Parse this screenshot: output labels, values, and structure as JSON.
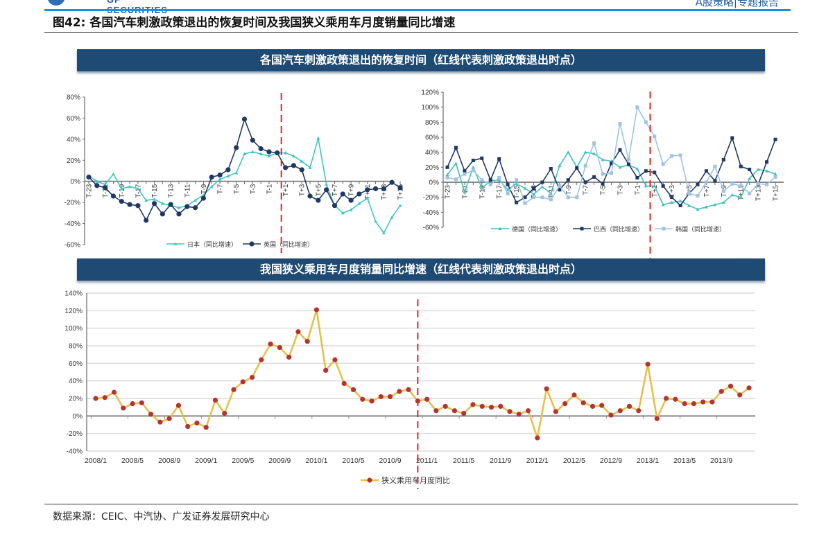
{
  "header": {
    "logo_text": "GF SECURITIES",
    "report_tag": "A股策略|专题报告",
    "caption": "图42:  各国汽车刺激政策退出的恢复时间及我国狭义乘用车月度销量同比增速"
  },
  "banners": {
    "top": "各国汽车刺激政策退出的恢复时间（红线代表刺激政策退出时点）",
    "bottom": "我国狭义乘用车月度销量同比增速（红线代表刺激政策退出时点）"
  },
  "footer": {
    "source": "数据来源：CEIC、中汽协、广发证券发展研究中心"
  },
  "colors": {
    "policy_exit_line": "#e8201c",
    "banner": "#1f4a73"
  },
  "chart_data": [
    {
      "type": "line",
      "x": [
        -23,
        -22,
        -21,
        -20,
        -19,
        -18,
        -17,
        -16,
        -15,
        -14,
        -13,
        -12,
        -11,
        -10,
        -9,
        -8,
        -7,
        -6,
        -5,
        -4,
        -3,
        -2,
        -1,
        0,
        1,
        2,
        3,
        4,
        5,
        6,
        7,
        8,
        9,
        10,
        11,
        12,
        13,
        14,
        15
      ],
      "xtick_labels": [
        "T-23",
        "T-21",
        "T-19",
        "T-17",
        "T-15",
        "T-13",
        "T-11",
        "T-9",
        "T-7",
        "T-5",
        "T-3",
        "T-1",
        "T+1",
        "T+3",
        "T+5",
        "T+7",
        "T+9",
        "T+11",
        "T+13",
        "T+15"
      ],
      "xtick_values": [
        -23,
        -21,
        -19,
        -17,
        -15,
        -13,
        -11,
        -9,
        -7,
        -5,
        -3,
        -1,
        1,
        3,
        5,
        7,
        9,
        11,
        13,
        15
      ],
      "ylim": [
        -60,
        80
      ],
      "yticks": [
        "80%",
        "60%",
        "40%",
        "20%",
        "0%",
        "-20%",
        "-40%",
        "-60%"
      ],
      "ytick_values": [
        80,
        60,
        40,
        20,
        0,
        -20,
        -40,
        -60
      ],
      "legend": "bottom",
      "policy_exit_x": 0,
      "series": [
        {
          "name": "日本（同比增速）",
          "color": "#3cc6c6",
          "marker": "triangle",
          "values": [
            5,
            0,
            -3,
            7,
            -7,
            -5,
            -7,
            -18,
            -17,
            -21,
            -23,
            -25,
            -23,
            -18,
            -13,
            -5,
            2,
            5,
            8,
            26,
            28,
            26,
            24,
            27,
            27,
            24,
            19,
            13,
            41,
            -3,
            -23,
            -30,
            -27,
            -21,
            -16,
            -38,
            -49,
            -34,
            -23
          ]
        },
        {
          "name": "英国（同比增速）",
          "color": "#1f3864",
          "marker": "circle",
          "values": [
            4,
            -4,
            -6,
            -14,
            -19,
            -22,
            -23,
            -37,
            -21,
            -31,
            -22,
            -31,
            -24,
            -25,
            -16,
            4,
            6,
            11,
            32,
            59,
            39,
            31,
            28,
            27,
            13,
            15,
            11,
            -14,
            -18,
            -8,
            -23,
            -12,
            -18,
            -12,
            -8,
            -7,
            -7,
            -1,
            -6
          ]
        }
      ]
    },
    {
      "type": "line",
      "x": [
        -23,
        -22,
        -21,
        -20,
        -19,
        -18,
        -17,
        -16,
        -15,
        -14,
        -13,
        -12,
        -11,
        -10,
        -9,
        -8,
        -7,
        -6,
        -5,
        -4,
        -3,
        -2,
        -1,
        0,
        1,
        2,
        3,
        4,
        5,
        6,
        7,
        8,
        9,
        10,
        11,
        12,
        13,
        14,
        15
      ],
      "xtick_labels": [
        "T-23",
        "T-21",
        "T-19",
        "T-17",
        "T-15",
        "T-13",
        "T-11",
        "T-9",
        "T-7",
        "T-5",
        "T-3",
        "T-1",
        "T+1",
        "T+3",
        "T+5",
        "T+7",
        "T+9",
        "T+11",
        "T+13",
        "T+15"
      ],
      "xtick_values": [
        -23,
        -21,
        -19,
        -17,
        -15,
        -13,
        -11,
        -9,
        -7,
        -5,
        -3,
        -1,
        1,
        3,
        5,
        7,
        9,
        11,
        13,
        15
      ],
      "ylim": [
        -60,
        120
      ],
      "yticks": [
        "120%",
        "100%",
        "80%",
        "60%",
        "40%",
        "20%",
        "0%",
        "-20%",
        "-40%",
        "-60%"
      ],
      "ytick_values": [
        120,
        100,
        80,
        60,
        40,
        20,
        0,
        -20,
        -40,
        -60
      ],
      "legend": "bottom",
      "policy_exit_x": 0,
      "series": [
        {
          "name": "德国（同比增速）",
          "color": "#40c0c0",
          "marker": "triangle",
          "values": [
            10,
            25,
            -13,
            20,
            -8,
            2,
            3,
            -10,
            -2,
            -8,
            -16,
            -6,
            -15,
            22,
            40,
            20,
            40,
            38,
            30,
            28,
            20,
            23,
            18,
            -5,
            -5,
            -30,
            -27,
            -25,
            -31,
            -36,
            -33,
            -30,
            -27,
            -17,
            -20,
            5,
            17,
            15,
            11
          ]
        },
        {
          "name": "巴西（同比增速）",
          "color": "#1f3864",
          "marker": "square",
          "values": [
            20,
            46,
            15,
            29,
            32,
            3,
            31,
            -3,
            -27,
            -20,
            -8,
            0,
            18,
            -10,
            3,
            19,
            0,
            7,
            -2,
            25,
            43,
            24,
            6,
            15,
            13,
            -5,
            -20,
            -31,
            -15,
            -3,
            15,
            2,
            30,
            59,
            21,
            17,
            -3,
            27,
            57
          ]
        },
        {
          "name": "韩国（同比增速）",
          "color": "#9dc3e6",
          "marker": "square",
          "values": [
            6,
            4,
            11,
            16,
            3,
            -3,
            6,
            -15,
            3,
            -28,
            -20,
            -20,
            -23,
            -5,
            -20,
            -20,
            22,
            52,
            11,
            12,
            78,
            30,
            100,
            80,
            61,
            24,
            35,
            36,
            -15,
            -18,
            0,
            21,
            -12,
            -2,
            -5,
            -15,
            -2,
            -3,
            7
          ]
        }
      ]
    },
    {
      "type": "line",
      "categories": [
        "2008/1",
        "2008/2",
        "2008/3",
        "2008/4",
        "2008/5",
        "2008/6",
        "2008/7",
        "2008/8",
        "2008/9",
        "2008/10",
        "2008/11",
        "2008/12",
        "2009/1",
        "2009/2",
        "2009/3",
        "2009/4",
        "2009/5",
        "2009/6",
        "2009/7",
        "2009/8",
        "2009/9",
        "2009/10",
        "2009/11",
        "2009/12",
        "2010/1",
        "2010/2",
        "2010/3",
        "2010/4",
        "2010/5",
        "2010/6",
        "2010/7",
        "2010/8",
        "2010/9",
        "2010/10",
        "2010/11",
        "2010/12",
        "2011/1",
        "2011/2",
        "2011/3",
        "2011/4",
        "2011/5",
        "2011/6",
        "2011/7",
        "2011/8",
        "2011/9",
        "2011/10",
        "2011/11",
        "2011/12",
        "2012/1",
        "2012/2",
        "2012/3",
        "2012/4",
        "2012/5",
        "2012/6",
        "2012/7",
        "2012/8",
        "2012/9",
        "2012/10",
        "2012/11",
        "2012/12",
        "2013/1",
        "2013/2",
        "2013/3",
        "2013/4",
        "2013/5",
        "2013/6",
        "2013/7",
        "2013/8",
        "2013/9",
        "2013/10",
        "2013/11",
        "2013/12"
      ],
      "xtick_labels": [
        "2008/1",
        "2008/5",
        "2008/9",
        "2009/1",
        "2009/5",
        "2009/9",
        "2010/1",
        "2010/5",
        "2010/9",
        "2011/1",
        "2011/5",
        "2011/9",
        "2012/1",
        "2012/5",
        "2012/9",
        "2013/1",
        "2013/5",
        "2013/9"
      ],
      "ylim": [
        -40,
        140
      ],
      "yticks": [
        "140%",
        "120%",
        "100%",
        "80%",
        "60%",
        "40%",
        "20%",
        "0%",
        "-20%",
        "-40%"
      ],
      "ytick_values": [
        140,
        120,
        100,
        80,
        60,
        40,
        20,
        0,
        -20,
        -40
      ],
      "grid": true,
      "legend": "bottom",
      "policy_exit_x": "2010/12",
      "series": [
        {
          "name": "狭义乘用车月度同比",
          "color": "#e6c04a",
          "marker_color": "#b83232",
          "marker": "circle",
          "values": [
            20,
            21,
            27,
            9,
            14,
            15,
            2,
            -7,
            -3,
            12,
            -12,
            -8,
            -13,
            18,
            3,
            30,
            39,
            44,
            64,
            82,
            78,
            67,
            96,
            85,
            121,
            52,
            64,
            37,
            30,
            19,
            17,
            22,
            22,
            28,
            30,
            17,
            19,
            6,
            11,
            6,
            3,
            13,
            11,
            10,
            11,
            5,
            2,
            6,
            -25,
            31,
            5,
            14,
            24,
            15,
            11,
            12,
            1,
            6,
            11,
            6,
            59,
            -3,
            20,
            19,
            14,
            14,
            16,
            16,
            28,
            34,
            24,
            32
          ]
        }
      ]
    }
  ]
}
